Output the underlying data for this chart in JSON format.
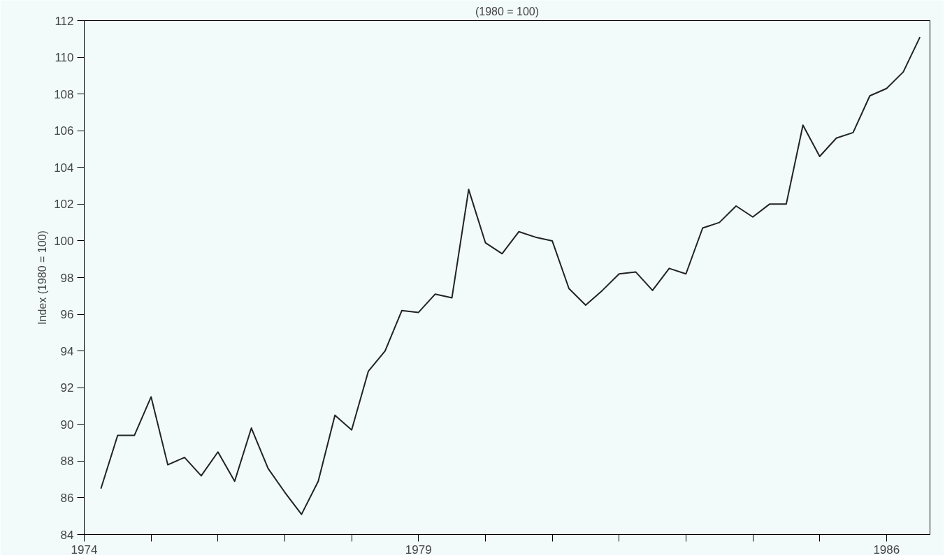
{
  "chart_data": {
    "type": "line",
    "title": "(1980 = 100)",
    "ylabel": "Index (1980 = 100)",
    "x": [
      1974.25,
      1974.5,
      1974.75,
      1975,
      1975.25,
      1975.5,
      1975.75,
      1976,
      1976.25,
      1976.5,
      1976.75,
      1977,
      1977.25,
      1977.5,
      1977.75,
      1978,
      1978.25,
      1978.5,
      1978.75,
      1979,
      1979.25,
      1979.5,
      1979.75,
      1980,
      1980.25,
      1980.5,
      1980.75,
      1981,
      1981.25,
      1981.5,
      1981.75,
      1982,
      1982.25,
      1982.5,
      1982.75,
      1983,
      1983.25,
      1983.5,
      1983.75,
      1984,
      1984.25,
      1984.5,
      1984.75,
      1985,
      1985.25,
      1985.5,
      1985.75,
      1986,
      1986.25,
      1986.5
    ],
    "series": [
      {
        "color": "#222222",
        "values": [
          86.5,
          89.4,
          89.4,
          91.5,
          87.8,
          88.2,
          87.2,
          88.5,
          86.9,
          89.8,
          87.6,
          86.3,
          85.1,
          86.9,
          90.5,
          89.7,
          92.9,
          94.0,
          96.2,
          96.1,
          97.1,
          96.9,
          102.8,
          99.9,
          99.3,
          100.5,
          100.2,
          100.0,
          97.4,
          96.5,
          97.3,
          98.2,
          98.3,
          97.3,
          98.5,
          98.2,
          100.7,
          101.0,
          101.9,
          101.3,
          102.0,
          102.0,
          106.3,
          104.6,
          105.6,
          105.9,
          107.9,
          108.3,
          109.2,
          111.1
        ]
      }
    ],
    "xlim": [
      1974,
      1986.65
    ],
    "ylim": [
      84,
      112
    ],
    "xticks": [
      1974,
      {
        "value": 1975,
        "label": null
      },
      {
        "value": 1976,
        "label": null
      },
      {
        "value": 1977,
        "label": null
      },
      {
        "value": 1978,
        "label": null
      },
      1979,
      {
        "value": 1980,
        "label": null
      },
      {
        "value": 1981,
        "label": null
      },
      {
        "value": 1982,
        "label": null
      },
      {
        "value": 1983,
        "label": null
      },
      {
        "value": 1984,
        "label": null
      },
      {
        "value": 1985,
        "label": null
      },
      1986
    ],
    "yticks": [
      84,
      86,
      88,
      90,
      92,
      94,
      96,
      98,
      100,
      102,
      104,
      106,
      108,
      110,
      112
    ],
    "grid": false,
    "marker": "none",
    "line_style": "solid"
  }
}
